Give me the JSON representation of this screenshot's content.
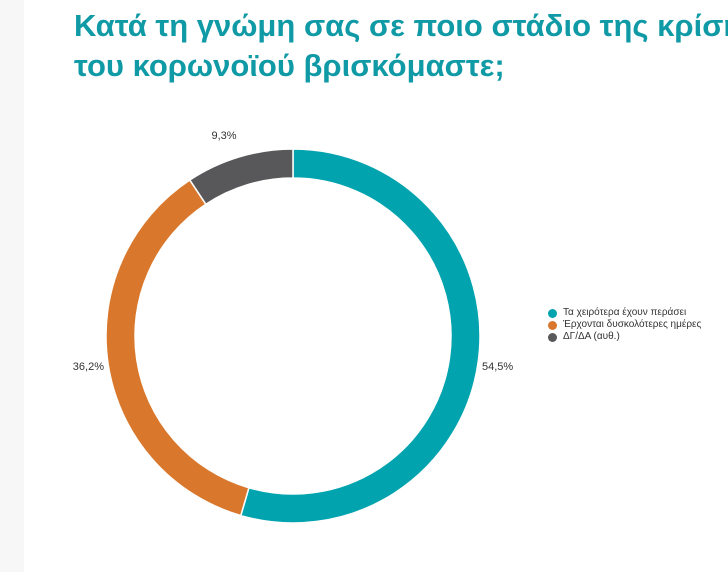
{
  "title": {
    "line1": "Κατά τη γνώμη σας σε ποιο στάδιο της κρίσης",
    "line2": "του κορωνοϊού βρισκόμαστε;"
  },
  "chart_data": {
    "type": "pie",
    "variant": "donut",
    "title": "Κατά τη γνώμη σας σε ποιο στάδιο της κρίσης του κορωνοϊού βρισκόμαστε;",
    "categories": [
      "Τα χειρότερα έχουν περάσει",
      "Έρχονται δυσκολότερες ημέρες",
      "ΔΓ/ΔΑ (αυθ.)"
    ],
    "values": [
      54.5,
      36.2,
      9.3
    ],
    "value_labels": [
      "54,5%",
      "36,2%",
      "9,3%"
    ],
    "colors": [
      "#00a3ae",
      "#d9782c",
      "#58585a"
    ],
    "legend_position": "right",
    "start_angle": "12 o'clock",
    "direction": "clockwise"
  }
}
